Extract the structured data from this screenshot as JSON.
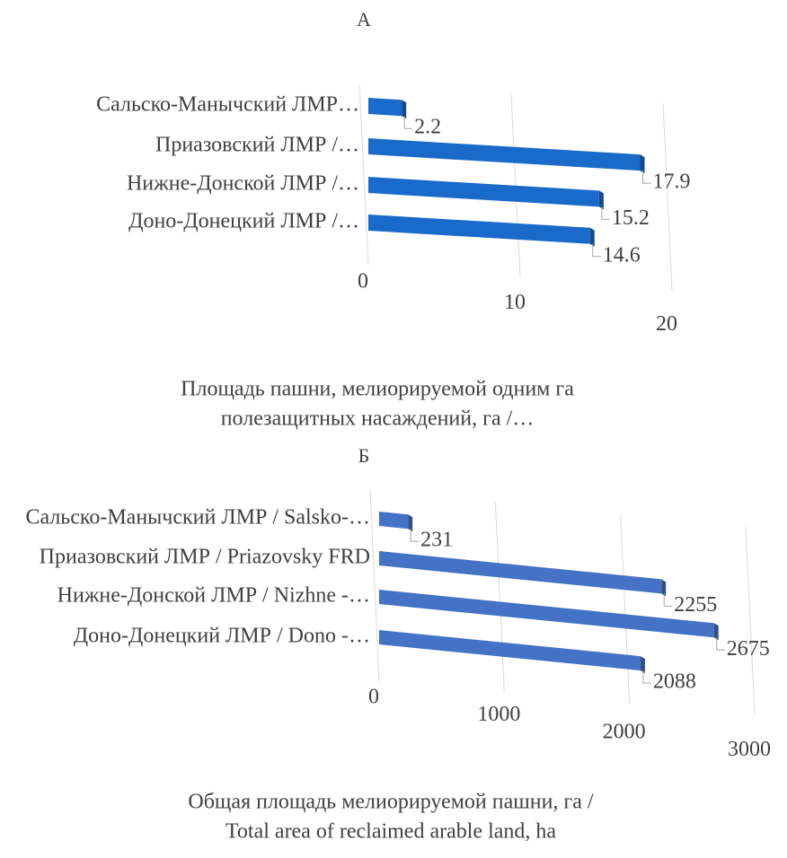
{
  "chart_data": [
    {
      "type": "bar",
      "orientation": "horizontal",
      "title": "А",
      "categories": [
        "Сальско-Манычский ЛМР…",
        "Приазовский ЛМР /…",
        "Нижне-Донской ЛМР /…",
        "Доно-Донецкий ЛМР /…"
      ],
      "values": [
        2.2,
        17.9,
        15.2,
        14.6
      ],
      "color": "#1a6ac9",
      "xlim": [
        0,
        20
      ],
      "xticks": [
        0,
        10,
        20
      ],
      "grid": true,
      "xlabel": [
        "Площадь пашни, мелиорируемой одним га",
        "полезащитных насаждений, га /…"
      ]
    },
    {
      "type": "bar",
      "orientation": "horizontal",
      "title": "Б",
      "categories": [
        "Сальско-Манычский ЛМР / Salsko-…",
        "Приазовский ЛМР / Priazovsky FRD",
        "Нижне-Донской ЛМР / Nizhne -…",
        "Доно-Донецкий ЛМР / Dono -…"
      ],
      "values": [
        231,
        2255,
        2675,
        2088
      ],
      "color": "#4472c4",
      "xlim": [
        0,
        3000
      ],
      "xticks": [
        0,
        1000,
        2000,
        3000
      ],
      "grid": true,
      "xlabel": [
        "Общая площадь мелиорируемой пашни, га /",
        "Total area of reclaimed arable land, ha"
      ]
    }
  ]
}
